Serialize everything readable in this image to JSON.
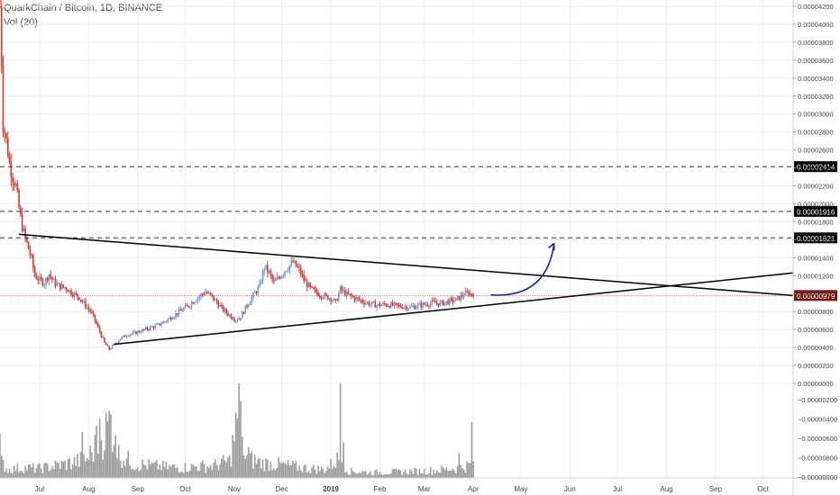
{
  "header": {
    "title": "QuarkChain / Bitcoin, 1D, BINANCE",
    "volume_label": "Vol (20)"
  },
  "colors": {
    "up": "#6f9bd8",
    "down": "#d9352b",
    "volume": "#9e9e9e",
    "current_price_line": "#d9352b",
    "current_price_tag": "#7d1612",
    "level_tag": "#000000",
    "projection_arrow": "#0a1cb4",
    "grid": "#eeeeee",
    "axis_text": "#444444"
  },
  "chart_data": {
    "type": "candlestick",
    "price_axis": {
      "range": [
        0.0,
        4.2e-05
      ],
      "ticks": [
        "0.00004200",
        "0.00004000",
        "0.00003800",
        "0.00003600",
        "0.00003400",
        "0.00003200",
        "0.00003000",
        "0.00002800",
        "0.00002600",
        "0.00002400",
        "0.00002200",
        "0.00002000",
        "0.00001800",
        "0.00001600",
        "0.00001400",
        "0.00001200",
        "0.00001000",
        "0.00000800",
        "0.00000600",
        "0.00000400",
        "0.00000200",
        "0.00000000"
      ],
      "tick_values": [
        4200,
        4000,
        3800,
        3600,
        3400,
        3200,
        3000,
        2800,
        2600,
        2400,
        2200,
        2000,
        1800,
        1600,
        1400,
        1200,
        1000,
        800,
        600,
        400,
        200,
        0
      ]
    },
    "volume_axis": {
      "ticks": [
        "−0.00000200",
        "−0.00000400",
        "−0.00000600",
        "−0.00000800",
        "−0.00000000"
      ]
    },
    "x_axis": {
      "ticks": [
        "Jul",
        "Aug",
        "Sep",
        "Oct",
        "Nov",
        "Dec",
        "2019",
        "Feb",
        "Mar",
        "Apr",
        "May",
        "Jun",
        "Jul",
        "Aug",
        "Sep",
        "Oct"
      ],
      "tick_days": [
        0,
        31,
        62,
        92,
        123,
        153,
        184,
        215,
        243,
        274,
        304,
        335,
        365,
        396,
        427,
        457
      ],
      "start": "2018-07-01",
      "visible_range_days": [
        -25,
        476
      ]
    },
    "horizontal_levels": [
      {
        "label": "0.00002414",
        "value": 2414
      },
      {
        "label": "0.00001916",
        "value": 1916
      },
      {
        "label": "0.00001621",
        "value": 1621
      }
    ],
    "current_price": {
      "label": "0.00000979",
      "value": 979
    },
    "trendlines": [
      {
        "name": "descending",
        "from": {
          "day": -13,
          "value": 1660
        },
        "to": {
          "day": 476,
          "value": 979
        }
      },
      {
        "name": "ascending",
        "from": {
          "day": 47,
          "value": 435
        },
        "to": {
          "day": 476,
          "value": 1230
        }
      }
    ],
    "projection_arrow": {
      "from": {
        "day": 285,
        "value": 985
      },
      "to": {
        "day": 325,
        "value": 1560
      }
    },
    "price_path": [
      {
        "day": -25,
        "value": 4200
      },
      {
        "day": -24,
        "value": 3600
      },
      {
        "day": -23,
        "value": 2900
      },
      {
        "day": -21,
        "value": 2700
      },
      {
        "day": -19,
        "value": 2450
      },
      {
        "day": -17,
        "value": 2300
      },
      {
        "day": -15,
        "value": 2200
      },
      {
        "day": -13,
        "value": 1950
      },
      {
        "day": -11,
        "value": 1750
      },
      {
        "day": -9,
        "value": 1620
      },
      {
        "day": -7,
        "value": 1500
      },
      {
        "day": -5,
        "value": 1380
      },
      {
        "day": -3,
        "value": 1200
      },
      {
        "day": 0,
        "value": 1150
      },
      {
        "day": 3,
        "value": 1120
      },
      {
        "day": 6,
        "value": 1220
      },
      {
        "day": 9,
        "value": 1130
      },
      {
        "day": 13,
        "value": 1080
      },
      {
        "day": 17,
        "value": 1060
      },
      {
        "day": 21,
        "value": 1000
      },
      {
        "day": 25,
        "value": 960
      },
      {
        "day": 29,
        "value": 870
      },
      {
        "day": 33,
        "value": 780
      },
      {
        "day": 37,
        "value": 620
      },
      {
        "day": 41,
        "value": 450
      },
      {
        "day": 44,
        "value": 380
      },
      {
        "day": 47,
        "value": 430
      },
      {
        "day": 51,
        "value": 500
      },
      {
        "day": 55,
        "value": 540
      },
      {
        "day": 60,
        "value": 560
      },
      {
        "day": 65,
        "value": 590
      },
      {
        "day": 70,
        "value": 620
      },
      {
        "day": 75,
        "value": 650
      },
      {
        "day": 80,
        "value": 700
      },
      {
        "day": 85,
        "value": 760
      },
      {
        "day": 90,
        "value": 820
      },
      {
        "day": 95,
        "value": 880
      },
      {
        "day": 100,
        "value": 960
      },
      {
        "day": 105,
        "value": 1020
      },
      {
        "day": 108,
        "value": 980
      },
      {
        "day": 112,
        "value": 900
      },
      {
        "day": 116,
        "value": 820
      },
      {
        "day": 120,
        "value": 760
      },
      {
        "day": 124,
        "value": 710
      },
      {
        "day": 127,
        "value": 740
      },
      {
        "day": 131,
        "value": 870
      },
      {
        "day": 135,
        "value": 980
      },
      {
        "day": 139,
        "value": 1080
      },
      {
        "day": 142,
        "value": 1300
      },
      {
        "day": 145,
        "value": 1230
      },
      {
        "day": 148,
        "value": 1120
      },
      {
        "day": 152,
        "value": 1200
      },
      {
        "day": 156,
        "value": 1280
      },
      {
        "day": 160,
        "value": 1350
      },
      {
        "day": 164,
        "value": 1260
      },
      {
        "day": 168,
        "value": 1120
      },
      {
        "day": 172,
        "value": 1040
      },
      {
        "day": 176,
        "value": 1000
      },
      {
        "day": 180,
        "value": 970
      },
      {
        "day": 184,
        "value": 950
      },
      {
        "day": 187,
        "value": 900
      },
      {
        "day": 190,
        "value": 1050
      },
      {
        "day": 194,
        "value": 990
      },
      {
        "day": 198,
        "value": 960
      },
      {
        "day": 203,
        "value": 920
      },
      {
        "day": 208,
        "value": 890
      },
      {
        "day": 213,
        "value": 870
      },
      {
        "day": 218,
        "value": 880
      },
      {
        "day": 223,
        "value": 870
      },
      {
        "day": 228,
        "value": 860
      },
      {
        "day": 233,
        "value": 850
      },
      {
        "day": 238,
        "value": 860
      },
      {
        "day": 243,
        "value": 880
      },
      {
        "day": 248,
        "value": 900
      },
      {
        "day": 253,
        "value": 890
      },
      {
        "day": 258,
        "value": 910
      },
      {
        "day": 263,
        "value": 930
      },
      {
        "day": 268,
        "value": 990
      },
      {
        "day": 271,
        "value": 1010
      },
      {
        "day": 274,
        "value": 979
      }
    ],
    "volume_path": [
      {
        "day": -25,
        "value": 25
      },
      {
        "day": -20,
        "value": 12
      },
      {
        "day": -10,
        "value": 15
      },
      {
        "day": 0,
        "value": 14
      },
      {
        "day": 10,
        "value": 18
      },
      {
        "day": 20,
        "value": 22
      },
      {
        "day": 30,
        "value": 28
      },
      {
        "day": 40,
        "value": 60
      },
      {
        "day": 45,
        "value": 85
      },
      {
        "day": 50,
        "value": 35
      },
      {
        "day": 60,
        "value": 20
      },
      {
        "day": 70,
        "value": 18
      },
      {
        "day": 80,
        "value": 16
      },
      {
        "day": 90,
        "value": 15
      },
      {
        "day": 100,
        "value": 17
      },
      {
        "day": 110,
        "value": 18
      },
      {
        "day": 120,
        "value": 25
      },
      {
        "day": 126,
        "value": 95
      },
      {
        "day": 130,
        "value": 30
      },
      {
        "day": 140,
        "value": 22
      },
      {
        "day": 150,
        "value": 20
      },
      {
        "day": 160,
        "value": 17
      },
      {
        "day": 170,
        "value": 14
      },
      {
        "day": 180,
        "value": 12
      },
      {
        "day": 190,
        "value": 30
      },
      {
        "day": 195,
        "value": 10
      },
      {
        "day": 210,
        "value": 8
      },
      {
        "day": 230,
        "value": 9
      },
      {
        "day": 250,
        "value": 11
      },
      {
        "day": 265,
        "value": 15
      },
      {
        "day": 274,
        "value": 20
      }
    ],
    "volume_spikes": [
      {
        "day": -25,
        "value": 75
      },
      {
        "day": 27,
        "value": 78
      },
      {
        "day": 36,
        "value": 88
      },
      {
        "day": 38,
        "value": 100
      },
      {
        "day": 48,
        "value": 72
      },
      {
        "day": 126,
        "value": 160
      },
      {
        "day": 128,
        "value": 70
      },
      {
        "day": 132,
        "value": 52
      },
      {
        "day": 190,
        "value": 160
      },
      {
        "day": 192,
        "value": 60
      },
      {
        "day": 265,
        "value": 42
      },
      {
        "day": 273,
        "value": 95
      }
    ],
    "volume_max": 160
  }
}
